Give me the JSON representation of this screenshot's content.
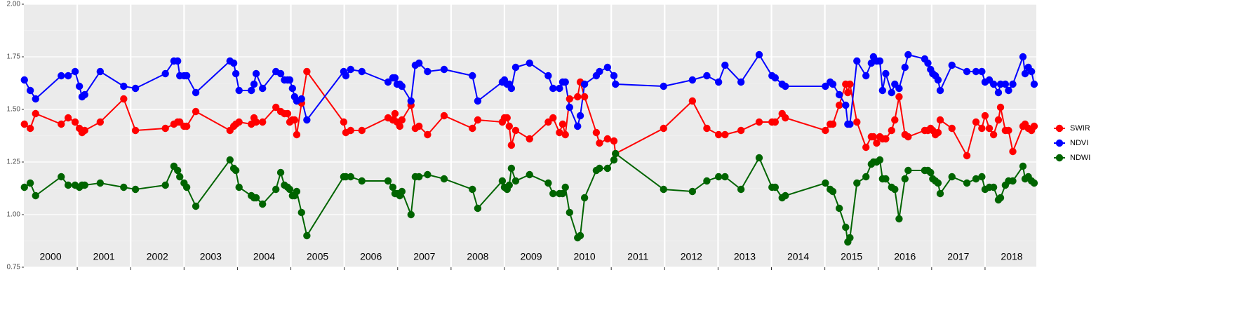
{
  "chart_data": {
    "type": "line",
    "x": [
      2000.01,
      2000.12,
      2000.22,
      2000.7,
      2000.83,
      2000.96,
      2001.04,
      2001.09,
      2001.14,
      2001.43,
      2001.87,
      2002.09,
      2002.65,
      2002.81,
      2002.88,
      2002.92,
      2003.0,
      2003.05,
      2003.22,
      2003.86,
      2003.93,
      2003.97,
      2004.03,
      2004.26,
      2004.31,
      2004.35,
      2004.47,
      2004.72,
      2004.81,
      2004.88,
      2004.94,
      2004.98,
      2005.03,
      2005.07,
      2005.11,
      2005.2,
      2005.3,
      2005.99,
      2006.03,
      2006.12,
      2006.33,
      2006.82,
      2006.91,
      2006.95,
      2006.99,
      2007.04,
      2007.08,
      2007.25,
      2007.33,
      2007.4,
      2007.56,
      2007.87,
      2008.4,
      2008.5,
      2008.96,
      2009.0,
      2009.05,
      2009.09,
      2009.13,
      2009.21,
      2009.47,
      2009.82,
      2009.91,
      2010.03,
      2010.09,
      2010.14,
      2010.22,
      2010.37,
      2010.42,
      2010.5,
      2010.72,
      2010.78,
      2010.93,
      2011.05,
      2011.08,
      2011.98,
      2012.52,
      2012.79,
      2013.01,
      2013.13,
      2013.43,
      2013.77,
      2014.01,
      2014.07,
      2014.2,
      2014.26,
      2015.01,
      2015.1,
      2015.15,
      2015.27,
      2015.39,
      2015.43,
      2015.47,
      2015.6,
      2015.77,
      2015.87,
      2015.91,
      2015.97,
      2016.03,
      2016.08,
      2016.14,
      2016.25,
      2016.31,
      2016.39,
      2016.5,
      2016.56,
      2016.87,
      2016.93,
      2016.98,
      2017.02,
      2017.07,
      2017.12,
      2017.16,
      2017.38,
      2017.66,
      2017.83,
      2017.94,
      2018.0,
      2018.08,
      2018.16,
      2018.25,
      2018.29,
      2018.38,
      2018.44,
      2018.52,
      2018.71,
      2018.75,
      2018.81,
      2018.87,
      2018.92
    ],
    "series": [
      {
        "name": "SWIR",
        "color": "#ff0000",
        "values": [
          1.43,
          1.41,
          1.48,
          1.43,
          1.46,
          1.44,
          1.41,
          1.39,
          1.4,
          1.44,
          1.55,
          1.4,
          1.41,
          1.43,
          1.44,
          1.44,
          1.42,
          1.42,
          1.49,
          1.4,
          1.42,
          1.43,
          1.44,
          1.43,
          1.46,
          1.44,
          1.44,
          1.51,
          1.49,
          1.48,
          1.48,
          1.44,
          1.45,
          1.45,
          1.38,
          1.53,
          1.68,
          1.44,
          1.39,
          1.4,
          1.4,
          1.46,
          1.45,
          1.48,
          1.44,
          1.42,
          1.45,
          1.52,
          1.41,
          1.42,
          1.38,
          1.47,
          1.41,
          1.45,
          1.44,
          1.46,
          1.46,
          1.42,
          1.33,
          1.4,
          1.36,
          1.44,
          1.46,
          1.39,
          1.43,
          1.38,
          1.55,
          1.56,
          1.63,
          1.56,
          1.39,
          1.34,
          1.36,
          1.35,
          1.29,
          1.41,
          1.54,
          1.41,
          1.38,
          1.38,
          1.4,
          1.44,
          1.44,
          1.44,
          1.48,
          1.46,
          1.4,
          1.43,
          1.43,
          1.52,
          1.62,
          1.58,
          1.62,
          1.44,
          1.32,
          1.37,
          1.37,
          1.34,
          1.37,
          1.36,
          1.36,
          1.4,
          1.45,
          1.56,
          1.38,
          1.37,
          1.4,
          1.4,
          1.41,
          1.4,
          1.38,
          1.39,
          1.45,
          1.41,
          1.28,
          1.44,
          1.41,
          1.47,
          1.41,
          1.38,
          1.45,
          1.51,
          1.4,
          1.4,
          1.3,
          1.42,
          1.43,
          1.41,
          1.4,
          1.42
        ]
      },
      {
        "name": "NDVI",
        "color": "#0000ff",
        "values": [
          1.64,
          1.59,
          1.55,
          1.66,
          1.66,
          1.68,
          1.61,
          1.56,
          1.57,
          1.68,
          1.61,
          1.6,
          1.67,
          1.73,
          1.73,
          1.66,
          1.66,
          1.66,
          1.58,
          1.73,
          1.72,
          1.67,
          1.59,
          1.59,
          1.62,
          1.67,
          1.6,
          1.68,
          1.67,
          1.64,
          1.64,
          1.64,
          1.6,
          1.56,
          1.54,
          1.55,
          1.45,
          1.68,
          1.66,
          1.69,
          1.68,
          1.63,
          1.65,
          1.65,
          1.62,
          1.62,
          1.61,
          1.54,
          1.71,
          1.72,
          1.68,
          1.69,
          1.66,
          1.54,
          1.63,
          1.64,
          1.62,
          1.62,
          1.6,
          1.7,
          1.72,
          1.66,
          1.6,
          1.6,
          1.63,
          1.63,
          1.51,
          1.42,
          1.47,
          1.62,
          1.66,
          1.68,
          1.7,
          1.66,
          1.62,
          1.61,
          1.64,
          1.66,
          1.63,
          1.71,
          1.63,
          1.76,
          1.66,
          1.65,
          1.62,
          1.61,
          1.61,
          1.63,
          1.62,
          1.57,
          1.52,
          1.43,
          1.43,
          1.73,
          1.66,
          1.72,
          1.75,
          1.73,
          1.73,
          1.59,
          1.67,
          1.58,
          1.62,
          1.6,
          1.7,
          1.76,
          1.74,
          1.72,
          1.69,
          1.67,
          1.66,
          1.64,
          1.59,
          1.71,
          1.68,
          1.68,
          1.68,
          1.63,
          1.64,
          1.62,
          1.58,
          1.62,
          1.62,
          1.59,
          1.62,
          1.75,
          1.67,
          1.7,
          1.68,
          1.62
        ]
      },
      {
        "name": "NDWI",
        "color": "#006400",
        "values": [
          1.13,
          1.15,
          1.09,
          1.18,
          1.14,
          1.14,
          1.13,
          1.14,
          1.14,
          1.15,
          1.13,
          1.12,
          1.14,
          1.23,
          1.21,
          1.18,
          1.15,
          1.13,
          1.04,
          1.26,
          1.22,
          1.21,
          1.13,
          1.09,
          1.08,
          1.08,
          1.05,
          1.12,
          1.2,
          1.14,
          1.13,
          1.12,
          1.09,
          1.09,
          1.11,
          1.01,
          0.9,
          1.18,
          1.18,
          1.18,
          1.16,
          1.16,
          1.13,
          1.1,
          1.1,
          1.09,
          1.11,
          1.0,
          1.18,
          1.18,
          1.19,
          1.17,
          1.12,
          1.03,
          1.16,
          1.13,
          1.12,
          1.14,
          1.22,
          1.16,
          1.19,
          1.15,
          1.1,
          1.1,
          1.1,
          1.13,
          1.01,
          0.89,
          0.9,
          1.08,
          1.21,
          1.22,
          1.22,
          1.26,
          1.29,
          1.12,
          1.11,
          1.16,
          1.18,
          1.18,
          1.12,
          1.27,
          1.13,
          1.13,
          1.08,
          1.09,
          1.15,
          1.12,
          1.11,
          1.03,
          0.94,
          0.87,
          0.89,
          1.15,
          1.18,
          1.24,
          1.25,
          1.25,
          1.26,
          1.17,
          1.17,
          1.13,
          1.12,
          0.98,
          1.17,
          1.21,
          1.21,
          1.21,
          1.2,
          1.17,
          1.16,
          1.15,
          1.1,
          1.18,
          1.15,
          1.17,
          1.18,
          1.12,
          1.13,
          1.13,
          1.07,
          1.08,
          1.14,
          1.16,
          1.16,
          1.23,
          1.17,
          1.18,
          1.16,
          1.15
        ]
      }
    ],
    "year_labels": [
      "2000",
      "2001",
      "2002",
      "2003",
      "2004",
      "2005",
      "2006",
      "2007",
      "2008",
      "2009",
      "2010",
      "2011",
      "2012",
      "2013",
      "2014",
      "2015",
      "2016",
      "2017",
      "2018"
    ],
    "xlim": [
      2000,
      2018.96
    ],
    "xticks": [
      2001,
      2002,
      2003,
      2004,
      2005,
      2006,
      2007,
      2008,
      2009,
      2010,
      2011,
      2012,
      2013,
      2014,
      2015,
      2016,
      2017,
      2018
    ],
    "ylim": [
      0.75,
      2.0
    ],
    "yticks": [
      {
        "value": 0.75,
        "label": "0.75"
      },
      {
        "value": 1.0,
        "label": "1.00"
      },
      {
        "value": 1.25,
        "label": "1.25"
      },
      {
        "value": 1.5,
        "label": "1.50"
      },
      {
        "value": 1.75,
        "label": "1.75"
      },
      {
        "value": 2.0,
        "label": "2.00"
      }
    ],
    "minor_yticks": [
      0.875,
      1.125,
      1.375,
      1.625,
      1.875
    ],
    "grid": true,
    "legend_position": "right"
  }
}
